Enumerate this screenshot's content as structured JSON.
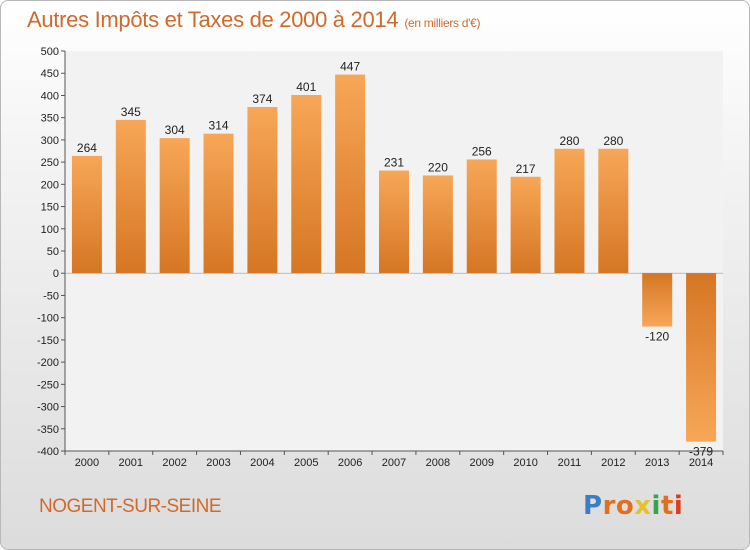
{
  "header": {
    "title": "Autres Impôts et Taxes de 2000 à 2014",
    "subtitle": "(en milliers d'€)"
  },
  "footer": {
    "commune": "NOGENT-SUR-SEINE",
    "logo_text": "Proxiti",
    "logo_colors": [
      "#3a7fc3",
      "#e06f1e",
      "#e06f1e",
      "#e8c02a",
      "#3aa24a",
      "#e06f1e",
      "#d93f1f"
    ]
  },
  "colors": {
    "accent": "#d06a2c",
    "bar_light": "#f7a757",
    "bar_dark": "#d57624"
  },
  "chart_data": {
    "type": "bar",
    "title": "Autres Impôts et Taxes de 2000 à 2014",
    "subtitle": "(en milliers d'€)",
    "categories": [
      "2000",
      "2001",
      "2002",
      "2003",
      "2004",
      "2005",
      "2006",
      "2007",
      "2008",
      "2009",
      "2010",
      "2011",
      "2012",
      "2013",
      "2014"
    ],
    "values": [
      264,
      345,
      304,
      314,
      374,
      401,
      447,
      231,
      220,
      256,
      217,
      280,
      280,
      -120,
      -379
    ],
    "ylim": [
      -400,
      500
    ],
    "yticks": [
      500,
      450,
      400,
      350,
      300,
      250,
      200,
      150,
      100,
      50,
      0,
      -50,
      -100,
      -150,
      -200,
      -250,
      -300,
      -350,
      -400
    ],
    "grid": false,
    "xlabel": "",
    "ylabel": ""
  }
}
